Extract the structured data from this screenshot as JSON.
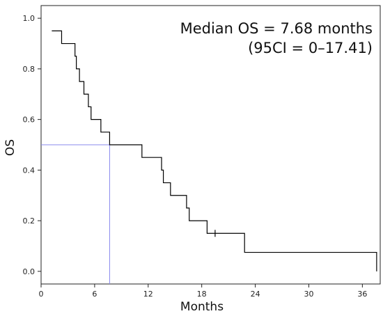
{
  "chart_data": {
    "type": "line",
    "xlabel": "Months",
    "ylabel": "OS",
    "xlim": [
      0,
      38
    ],
    "ylim": [
      -0.05,
      1.05
    ],
    "x_ticks": [
      0,
      6,
      12,
      18,
      24,
      30,
      36
    ],
    "x_tick_labels": [
      "0",
      "6",
      "12",
      "18",
      "24",
      "30",
      "36"
    ],
    "y_ticks": [
      0.0,
      0.2,
      0.4,
      0.6,
      0.8,
      1.0
    ],
    "y_tick_labels": [
      "0.0",
      "0.2",
      "0.4",
      "0.6",
      "0.8",
      "1.0"
    ],
    "grid": false,
    "series": [
      {
        "color": "#000000",
        "step_points": [
          [
            1.2,
            0.95
          ],
          [
            2.3,
            0.9
          ],
          [
            3.8,
            0.85
          ],
          [
            3.95,
            0.8
          ],
          [
            4.3,
            0.75
          ],
          [
            4.8,
            0.7
          ],
          [
            5.3,
            0.65
          ],
          [
            5.6,
            0.6
          ],
          [
            6.7,
            0.55
          ],
          [
            7.68,
            0.5
          ],
          [
            11.3,
            0.45
          ],
          [
            13.5,
            0.4
          ],
          [
            13.7,
            0.35
          ],
          [
            14.5,
            0.3
          ],
          [
            16.3,
            0.25
          ],
          [
            16.6,
            0.2
          ],
          [
            18.6,
            0.15
          ],
          [
            22.8,
            0.075
          ],
          [
            37.6,
            0.0
          ]
        ],
        "censored": [
          [
            19.5,
            0.15
          ]
        ]
      }
    ],
    "median_reference": {
      "x": 7.68,
      "y": 0.5,
      "color": "#8888ee"
    },
    "annotations": {
      "line1": "Median OS = 7.68 months",
      "line2": "(95CI = 0–17.41)"
    }
  }
}
